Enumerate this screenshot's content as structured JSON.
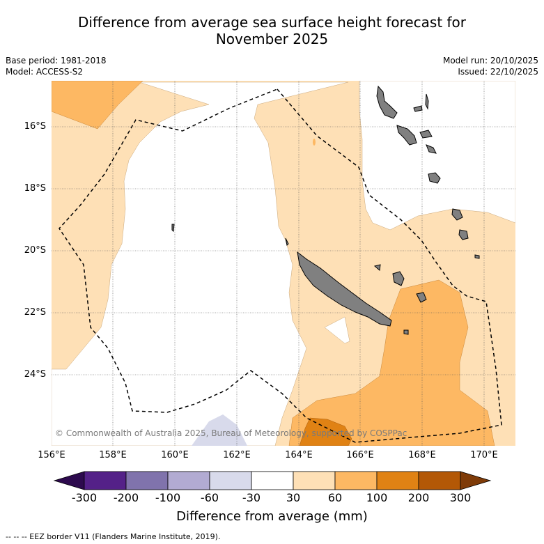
{
  "title_line1": "Difference from average sea surface height forecast for",
  "title_line2": "November 2025",
  "base_period": "Base period: 1981-2018",
  "model": "Model: ACCESS-S2",
  "model_run": "Model run: 20/10/2025",
  "issued": "Issued: 22/10/2025",
  "lat_labels": [
    "16°S",
    "18°S",
    "20°S",
    "22°S",
    "24°S"
  ],
  "lon_labels": [
    "156°E",
    "158°E",
    "160°E",
    "162°E",
    "164°E",
    "166°E",
    "168°E",
    "170°E"
  ],
  "copyright": "© Commonwealth of Australia 2025, Bureau of Meteorology, supported by COSPPac",
  "colorbar": {
    "ticks": [
      "-300",
      "-200",
      "-100",
      "-60",
      "-30",
      "30",
      "60",
      "100",
      "200",
      "300"
    ],
    "title": "Difference from average (mm)",
    "colors": {
      "below_min": "#2d0a4e",
      "n300_200": "#542188",
      "n200_100": "#8073ac",
      "n100_60": "#b2abd2",
      "n60_30": "#d8daeb",
      "n30_30": "#ffffff",
      "p30_60": "#fee0b6",
      "p60_100": "#fdb863",
      "p100_200": "#e08214",
      "p200_300": "#b35806",
      "above_max": "#7f3b08"
    }
  },
  "land_color": "#808080",
  "legend_text": "--  --  -- EEZ border V11 (Flanders Marine Institute, 2019)."
}
